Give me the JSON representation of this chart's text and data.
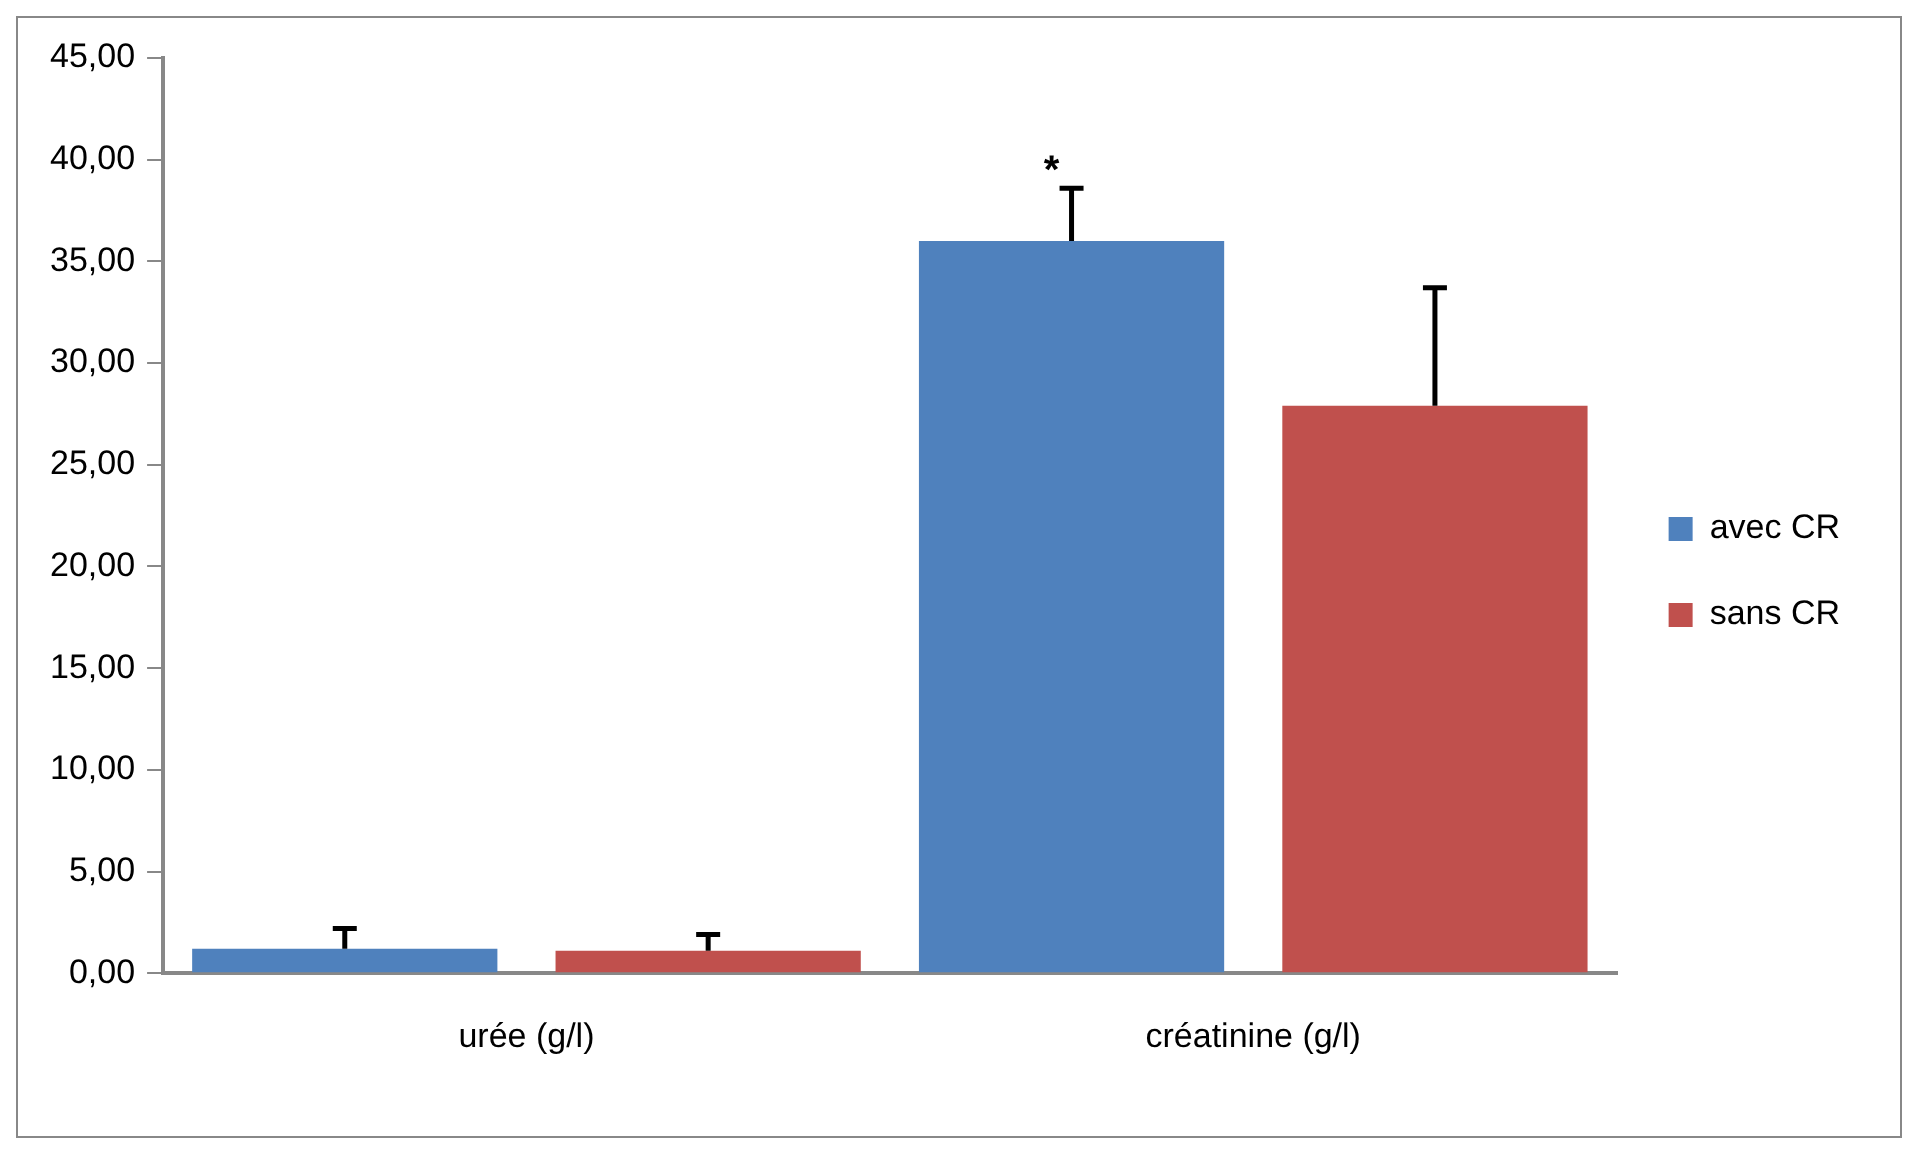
{
  "chart_data": {
    "type": "bar",
    "categories": [
      "urée (g/l)",
      "créatinine (g/l)"
    ],
    "series": [
      {
        "name": "avec CR",
        "color": "#4f81bd",
        "values": [
          1.2,
          36.0
        ],
        "errors": [
          [
            1.2,
            2.2
          ],
          [
            36.0,
            38.6
          ]
        ]
      },
      {
        "name": "sans CR",
        "color": "#c0504d",
        "values": [
          1.1,
          27.9
        ],
        "errors": [
          [
            1.1,
            1.9
          ],
          [
            27.9,
            33.7
          ]
        ]
      }
    ],
    "ylim": [
      0,
      45
    ],
    "yticks": [
      {
        "value": 0,
        "label": "0,00"
      },
      {
        "value": 5,
        "label": "5,00"
      },
      {
        "value": 10,
        "label": "10,00"
      },
      {
        "value": 15,
        "label": "15,00"
      },
      {
        "value": 20,
        "label": "20,00"
      },
      {
        "value": 25,
        "label": "25,00"
      },
      {
        "value": 30,
        "label": "30,00"
      },
      {
        "value": 35,
        "label": "35,00"
      },
      {
        "value": 40,
        "label": "40,00"
      },
      {
        "value": 45,
        "label": "45,00"
      }
    ],
    "annotations": [
      "*"
    ],
    "grid": false,
    "legend": "right"
  }
}
